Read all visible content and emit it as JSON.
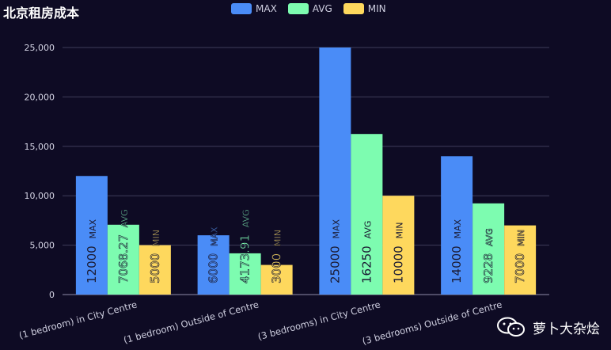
{
  "chart_data": {
    "type": "bar",
    "title": "北京租房成本",
    "categories": [
      "(1 bedroom) in City Centre",
      "(1 bedroom) Outside of Centre",
      "(3 bedrooms) in City Centre",
      "(3 bedrooms) Outside of Centre"
    ],
    "series": [
      {
        "name": "MAX",
        "color": "#4a8cf7",
        "values": [
          12000,
          6000,
          25000,
          14000
        ]
      },
      {
        "name": "AVG",
        "color": "#7dfcb0",
        "values": [
          7068.27,
          4173.91,
          16250,
          9228
        ]
      },
      {
        "name": "MIN",
        "color": "#fed85d",
        "values": [
          5000,
          3000,
          10000,
          7000
        ]
      }
    ],
    "ylim": [
      0,
      25000
    ],
    "yticks": [
      0,
      5000,
      10000,
      15000,
      20000,
      25000
    ],
    "ytick_labels": [
      "0",
      "5,000",
      "10,000",
      "15,000",
      "20,000",
      "25,000"
    ],
    "legend_position": "top-center",
    "grid": true
  },
  "watermark": {
    "text": "萝卜大杂烩",
    "icon": "wechat-icon"
  }
}
